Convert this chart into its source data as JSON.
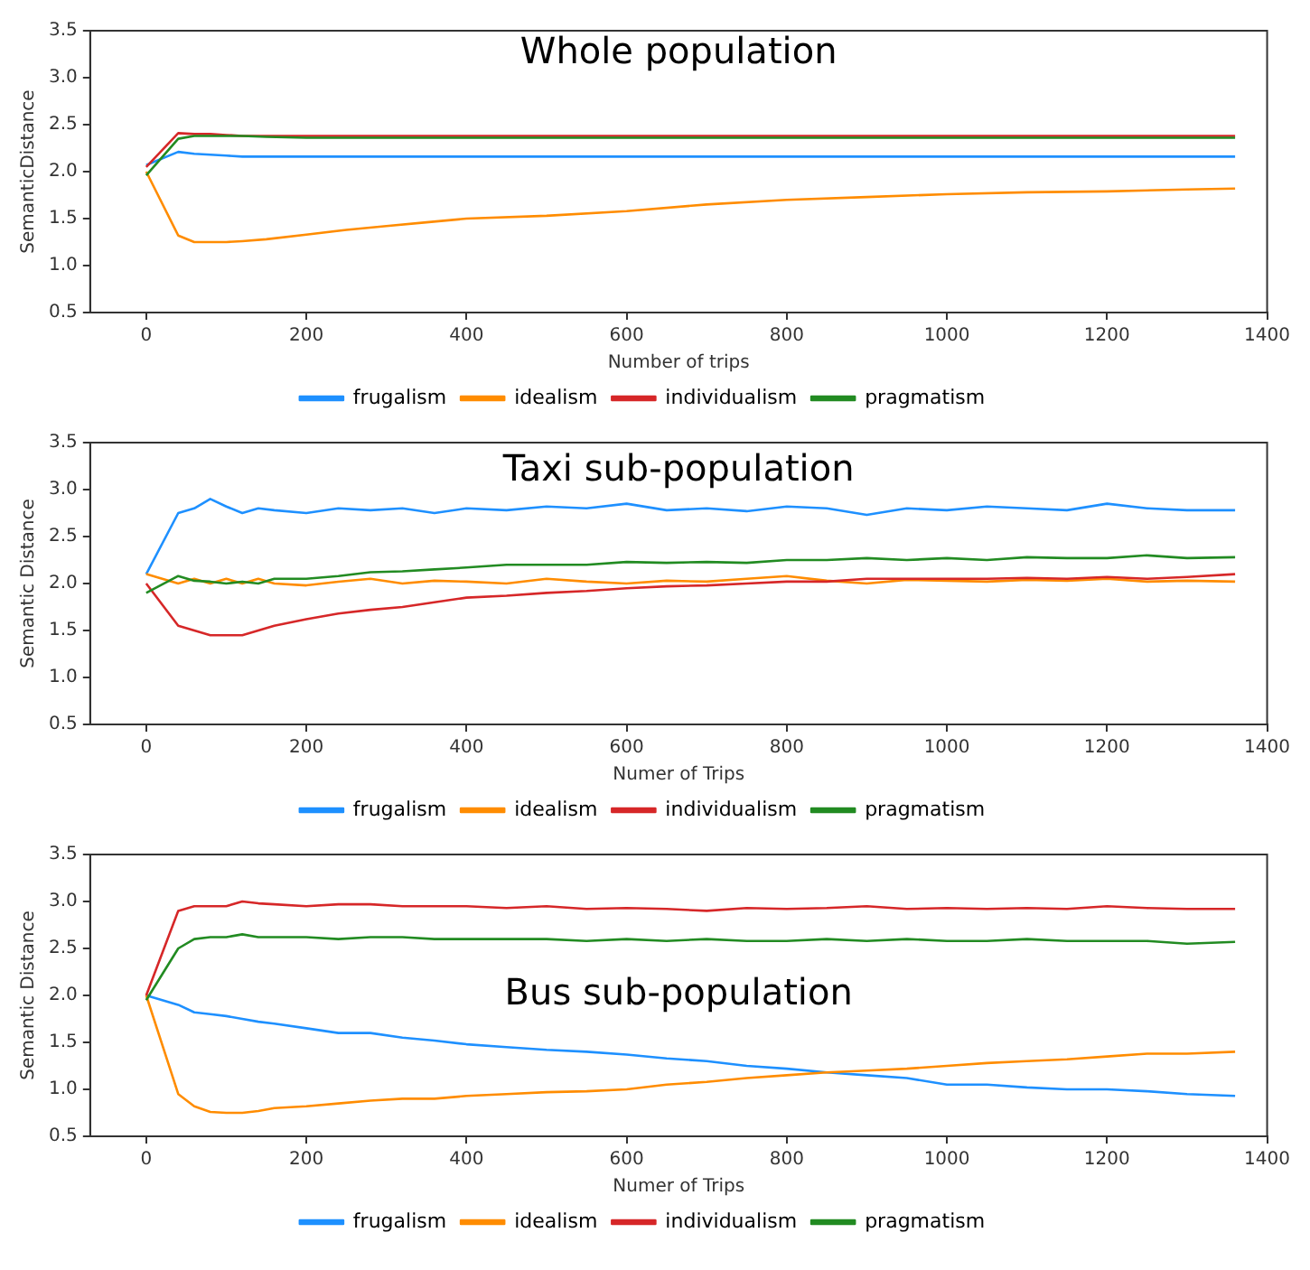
{
  "chart_data": [
    {
      "type": "line",
      "title": "Whole population",
      "xlabel": "Number of trips",
      "ylabel": "SemanticDistance",
      "x": [
        0,
        40,
        60,
        80,
        100,
        120,
        150,
        200,
        250,
        300,
        350,
        400,
        500,
        600,
        700,
        800,
        900,
        1000,
        1100,
        1200,
        1300,
        1360
      ],
      "xlim": [
        -70,
        1400
      ],
      "xticks": [
        0,
        200,
        400,
        600,
        800,
        1000,
        1200,
        1400
      ],
      "ylim": [
        0.5,
        3.5
      ],
      "yticks": [
        {
          "value": 0.5,
          "label": "0.5"
        },
        {
          "value": 1,
          "label": "1.0"
        },
        {
          "value": 1.5,
          "label": "1.5"
        },
        {
          "value": 2,
          "label": "2.0"
        },
        {
          "value": 2.5,
          "label": "2.5"
        },
        {
          "value": 3,
          "label": "3.0"
        },
        {
          "value": 3.5,
          "label": "3.5"
        }
      ],
      "grid": false,
      "legend": "bottom",
      "marker": "none",
      "line_style": "solid",
      "series": [
        {
          "name": "frugalism",
          "color": "#1e90ff",
          "values": [
            2.07,
            2.21,
            2.19,
            2.18,
            2.17,
            2.16,
            2.16,
            2.16,
            2.16,
            2.16,
            2.16,
            2.16,
            2.16,
            2.16,
            2.16,
            2.16,
            2.16,
            2.16,
            2.16,
            2.16,
            2.16,
            2.16
          ]
        },
        {
          "name": "idealism",
          "color": "#ff8c00",
          "values": [
            2.0,
            1.32,
            1.25,
            1.25,
            1.25,
            1.26,
            1.28,
            1.33,
            1.38,
            1.42,
            1.46,
            1.5,
            1.53,
            1.58,
            1.65,
            1.7,
            1.73,
            1.76,
            1.78,
            1.79,
            1.81,
            1.82
          ]
        },
        {
          "name": "individualism",
          "color": "#d62728",
          "values": [
            2.05,
            2.41,
            2.4,
            2.4,
            2.39,
            2.38,
            2.38,
            2.38,
            2.38,
            2.38,
            2.38,
            2.38,
            2.38,
            2.38,
            2.38,
            2.38,
            2.38,
            2.38,
            2.38,
            2.38,
            2.38,
            2.38
          ]
        },
        {
          "name": "pragmatism",
          "color": "#228b22",
          "values": [
            1.96,
            2.35,
            2.38,
            2.38,
            2.38,
            2.38,
            2.37,
            2.36,
            2.36,
            2.36,
            2.36,
            2.36,
            2.36,
            2.36,
            2.36,
            2.36,
            2.36,
            2.36,
            2.36,
            2.36,
            2.36,
            2.36
          ]
        }
      ]
    },
    {
      "type": "line",
      "title": "Taxi sub-population",
      "xlabel": "Numer of Trips",
      "ylabel": "Semantic Distance",
      "x": [
        0,
        40,
        60,
        80,
        100,
        120,
        140,
        160,
        200,
        240,
        280,
        320,
        360,
        400,
        450,
        500,
        550,
        600,
        650,
        700,
        750,
        800,
        850,
        900,
        950,
        1000,
        1050,
        1100,
        1150,
        1200,
        1250,
        1300,
        1360
      ],
      "xlim": [
        -70,
        1400
      ],
      "xticks": [
        0,
        200,
        400,
        600,
        800,
        1000,
        1200,
        1400
      ],
      "ylim": [
        0.5,
        3.5
      ],
      "yticks": [
        {
          "value": 0.5,
          "label": "0.5"
        },
        {
          "value": 1,
          "label": "1.0"
        },
        {
          "value": 1.5,
          "label": "1.5"
        },
        {
          "value": 2,
          "label": "2.0"
        },
        {
          "value": 2.5,
          "label": "2.5"
        },
        {
          "value": 3,
          "label": "3.0"
        },
        {
          "value": 3.5,
          "label": "3.5"
        }
      ],
      "grid": false,
      "legend": "bottom",
      "marker": "none",
      "line_style": "solid",
      "series": [
        {
          "name": "frugalism",
          "color": "#1e90ff",
          "values": [
            2.1,
            2.75,
            2.8,
            2.9,
            2.82,
            2.75,
            2.8,
            2.78,
            2.75,
            2.8,
            2.78,
            2.8,
            2.75,
            2.8,
            2.78,
            2.82,
            2.8,
            2.85,
            2.78,
            2.8,
            2.77,
            2.82,
            2.8,
            2.73,
            2.8,
            2.78,
            2.82,
            2.8,
            2.78,
            2.85,
            2.8,
            2.78,
            2.78
          ]
        },
        {
          "name": "idealism",
          "color": "#ff8c00",
          "values": [
            2.1,
            2.0,
            2.05,
            2.0,
            2.05,
            2.0,
            2.05,
            2.0,
            1.98,
            2.02,
            2.05,
            2.0,
            2.03,
            2.02,
            2.0,
            2.05,
            2.02,
            2.0,
            2.03,
            2.02,
            2.05,
            2.08,
            2.03,
            2.0,
            2.04,
            2.03,
            2.02,
            2.04,
            2.03,
            2.05,
            2.02,
            2.03,
            2.02
          ]
        },
        {
          "name": "individualism",
          "color": "#d62728",
          "values": [
            2.0,
            1.55,
            1.5,
            1.45,
            1.45,
            1.45,
            1.5,
            1.55,
            1.62,
            1.68,
            1.72,
            1.75,
            1.8,
            1.85,
            1.87,
            1.9,
            1.92,
            1.95,
            1.97,
            1.98,
            2.0,
            2.02,
            2.02,
            2.05,
            2.05,
            2.05,
            2.05,
            2.06,
            2.05,
            2.07,
            2.05,
            2.07,
            2.1
          ]
        },
        {
          "name": "pragmatism",
          "color": "#228b22",
          "values": [
            1.9,
            2.08,
            2.03,
            2.02,
            2.0,
            2.02,
            2.0,
            2.05,
            2.05,
            2.08,
            2.12,
            2.13,
            2.15,
            2.17,
            2.2,
            2.2,
            2.2,
            2.23,
            2.22,
            2.23,
            2.22,
            2.25,
            2.25,
            2.27,
            2.25,
            2.27,
            2.25,
            2.28,
            2.27,
            2.27,
            2.3,
            2.27,
            2.28
          ]
        }
      ]
    },
    {
      "type": "line",
      "title": "Bus sub-population",
      "xlabel": "Numer of Trips",
      "ylabel": "Semantic Distance",
      "x": [
        0,
        40,
        60,
        80,
        100,
        120,
        140,
        160,
        200,
        240,
        280,
        320,
        360,
        400,
        450,
        500,
        550,
        600,
        650,
        700,
        750,
        800,
        850,
        900,
        950,
        1000,
        1050,
        1100,
        1150,
        1200,
        1250,
        1300,
        1360
      ],
      "xlim": [
        -70,
        1400
      ],
      "xticks": [
        0,
        200,
        400,
        600,
        800,
        1000,
        1200,
        1400
      ],
      "ylim": [
        0.5,
        3.5
      ],
      "yticks": [
        {
          "value": 0.5,
          "label": "0.5"
        },
        {
          "value": 1,
          "label": "1.0"
        },
        {
          "value": 1.5,
          "label": "1.5"
        },
        {
          "value": 2,
          "label": "2.0"
        },
        {
          "value": 2.5,
          "label": "2.5"
        },
        {
          "value": 3,
          "label": "3.0"
        },
        {
          "value": 3.5,
          "label": "3.5"
        }
      ],
      "grid": false,
      "legend": "bottom",
      "marker": "none",
      "line_style": "solid",
      "series": [
        {
          "name": "frugalism",
          "color": "#1e90ff",
          "values": [
            2.0,
            1.9,
            1.82,
            1.8,
            1.78,
            1.75,
            1.72,
            1.7,
            1.65,
            1.6,
            1.6,
            1.55,
            1.52,
            1.48,
            1.45,
            1.42,
            1.4,
            1.37,
            1.33,
            1.3,
            1.25,
            1.22,
            1.18,
            1.15,
            1.12,
            1.05,
            1.05,
            1.02,
            1.0,
            1.0,
            0.98,
            0.95,
            0.93
          ]
        },
        {
          "name": "idealism",
          "color": "#ff8c00",
          "values": [
            2.0,
            0.95,
            0.82,
            0.76,
            0.75,
            0.75,
            0.77,
            0.8,
            0.82,
            0.85,
            0.88,
            0.9,
            0.9,
            0.93,
            0.95,
            0.97,
            0.98,
            1.0,
            1.05,
            1.08,
            1.12,
            1.15,
            1.18,
            1.2,
            1.22,
            1.25,
            1.28,
            1.3,
            1.32,
            1.35,
            1.38,
            1.38,
            1.4
          ]
        },
        {
          "name": "individualism",
          "color": "#d62728",
          "values": [
            2.0,
            2.9,
            2.95,
            2.95,
            2.95,
            3.0,
            2.98,
            2.97,
            2.95,
            2.97,
            2.97,
            2.95,
            2.95,
            2.95,
            2.93,
            2.95,
            2.92,
            2.93,
            2.92,
            2.9,
            2.93,
            2.92,
            2.93,
            2.95,
            2.92,
            2.93,
            2.92,
            2.93,
            2.92,
            2.95,
            2.93,
            2.92,
            2.92
          ]
        },
        {
          "name": "pragmatism",
          "color": "#228b22",
          "values": [
            1.95,
            2.5,
            2.6,
            2.62,
            2.62,
            2.65,
            2.62,
            2.62,
            2.62,
            2.6,
            2.62,
            2.62,
            2.6,
            2.6,
            2.6,
            2.6,
            2.58,
            2.6,
            2.58,
            2.6,
            2.58,
            2.58,
            2.6,
            2.58,
            2.6,
            2.58,
            2.58,
            2.6,
            2.58,
            2.58,
            2.58,
            2.55,
            2.57
          ]
        }
      ]
    }
  ]
}
